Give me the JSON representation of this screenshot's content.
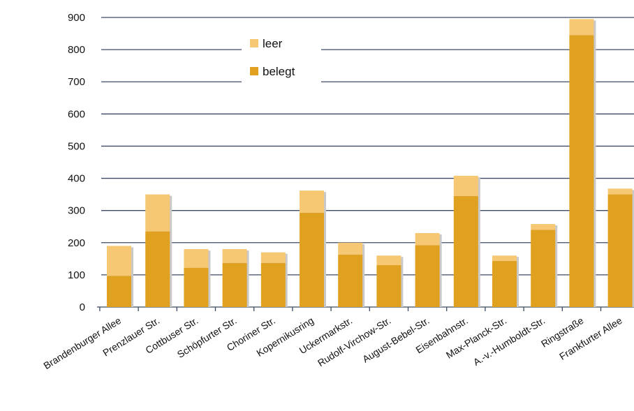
{
  "chart_data": {
    "type": "bar",
    "stacked": true,
    "categories": [
      "Brandenburger Allee",
      "Prenzlauer Str.",
      "Cottbuser Str.",
      "Schöpfurter Str.",
      "Choriner Str.",
      "Kopernikusring",
      "Uckermarkstr.",
      "Rudolf-Virchow-Str.",
      "August-Bebel-Str.",
      "Eisenbahnstr.",
      "Max-Planck-Str.",
      "A.-v.-Humboldt-Str.",
      "Ringstraße",
      "Frankfurter Allee"
    ],
    "series": [
      {
        "name": "belegt",
        "color": "#e0a020",
        "values": [
          97,
          235,
          122,
          137,
          137,
          293,
          163,
          130,
          192,
          345,
          143,
          240,
          845,
          350
        ]
      },
      {
        "name": "leer",
        "color": "#f7c873",
        "values": [
          93,
          115,
          58,
          43,
          33,
          69,
          37,
          30,
          38,
          63,
          17,
          18,
          50,
          18
        ]
      }
    ],
    "ylim": [
      0,
      900
    ],
    "yticks": [
      0,
      100,
      200,
      300,
      400,
      500,
      600,
      700,
      800,
      900
    ],
    "ytick_labels": [
      "0",
      "100",
      "200",
      "300",
      "400",
      "500",
      "600",
      "700",
      "800",
      "900"
    ],
    "grid": true,
    "legend_position": "top-center",
    "legend": [
      {
        "label": "leer",
        "color": "#f7c873"
      },
      {
        "label": "belegt",
        "color": "#e0a020"
      }
    ]
  }
}
